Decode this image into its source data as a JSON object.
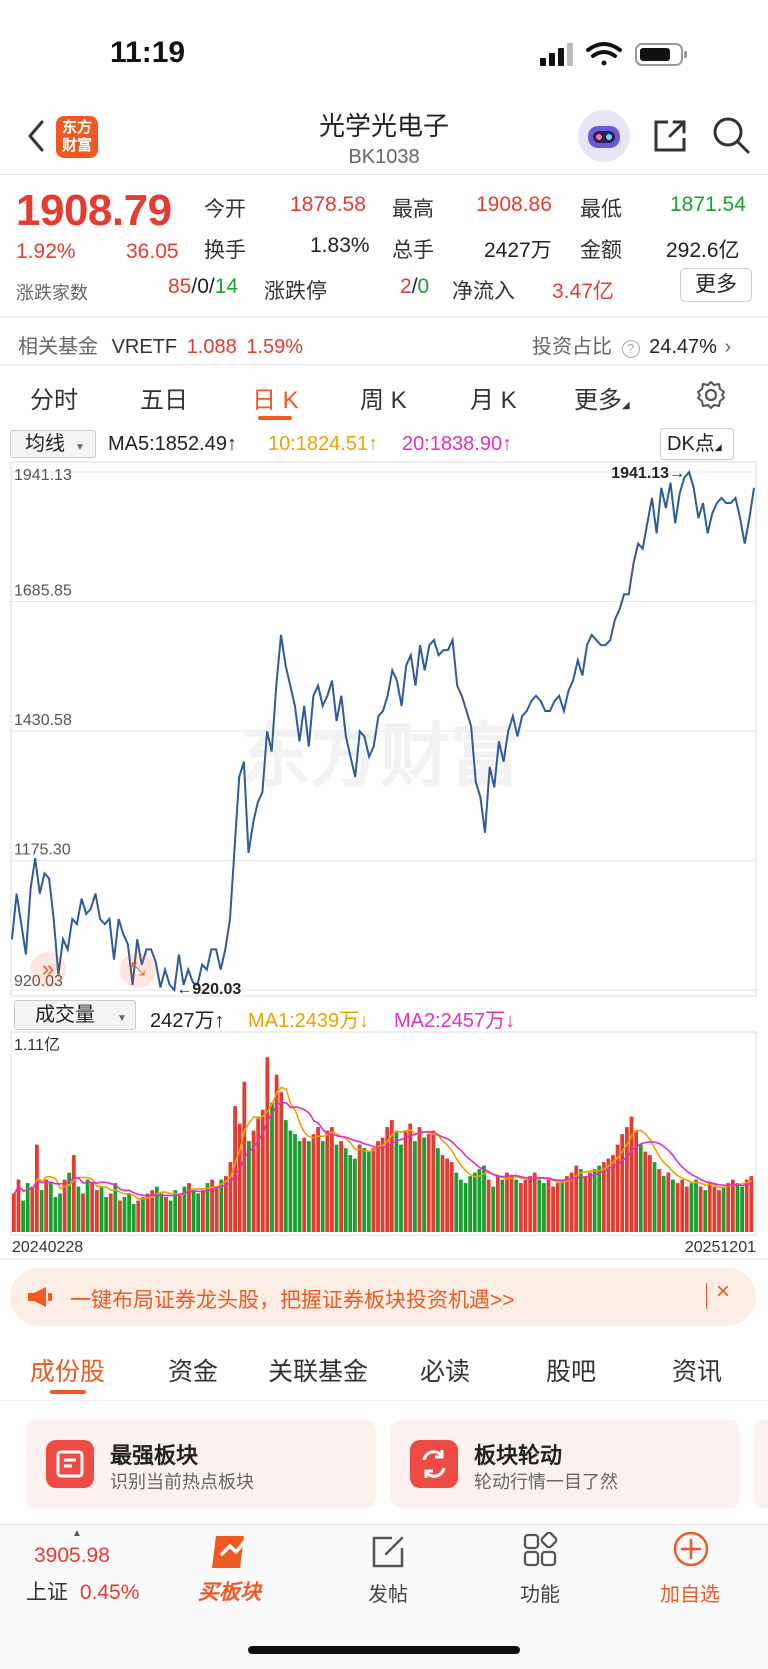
{
  "status_bar": {
    "time": "11:19"
  },
  "header": {
    "logo_line1": "东方",
    "logo_line2": "财富",
    "title": "光学光电子",
    "code": "BK1038"
  },
  "quote": {
    "price": "1908.79",
    "change_pct": "1.92%",
    "change": "36.05",
    "open_label": "今开",
    "open": "1878.58",
    "high_label": "最高",
    "high": "1908.86",
    "low_label": "最低",
    "low": "1871.54",
    "turnover_label": "换手",
    "turnover": "1.83%",
    "volume_label": "总手",
    "volume": "2427万",
    "amount_label": "金额",
    "amount": "292.6亿",
    "breadth_label": "涨跌家数",
    "breadth_up": "85",
    "breadth_sep1": "/",
    "breadth_flat": "0",
    "breadth_sep2": "/",
    "breadth_down": "14",
    "limit_label": "涨跌停",
    "limit_up": "2",
    "limit_sep": "/",
    "limit_down": "0",
    "netflow_label": "净流入",
    "netflow": "3.47亿",
    "more_label": "更多"
  },
  "fund": {
    "label": "相关基金",
    "name": "VRETF",
    "price": "1.088",
    "pct": "1.59%",
    "ratio_label": "投资占比",
    "ratio": "24.47%"
  },
  "chart_tabs": [
    "分时",
    "五日",
    "日 K",
    "周 K",
    "月 K",
    "更多"
  ],
  "chart_header": {
    "indicator_select": "均线",
    "ma5": "MA5:1852.49↑",
    "ma10": "10:1824.51↑",
    "ma20": "20:1838.90↑",
    "dk_label": "DK点"
  },
  "volume_header": {
    "select": "成交量",
    "volume": "2427万↑",
    "ma1": "MA1:2439万↓",
    "ma2": "MA2:2457万↓",
    "max_label": "1.11亿"
  },
  "colors": {
    "up": "#e53b30",
    "down": "#18a12f",
    "line": "#2f5a9b",
    "accent": "#f05a22",
    "ma10": "#f0a000",
    "ma20": "#e22ec4"
  },
  "chart_data": {
    "type": "line",
    "x_start": "20240228",
    "x_end": "20251201",
    "y_ticks": [
      "1941.13",
      "1685.85",
      "1430.58",
      "1175.30",
      "920.03"
    ],
    "ylim": [
      920.03,
      1941.13
    ],
    "max_label": "1941.13→",
    "min_label": "←920.03",
    "values": [
      1020,
      1110,
      1050,
      990,
      1120,
      1180,
      1110,
      1150,
      1140,
      1060,
      950,
      1020,
      1000,
      1060,
      1050,
      1100,
      1070,
      1080,
      1110,
      1060,
      1050,
      1060,
      980,
      1060,
      1030,
      1010,
      930,
      1020,
      970,
      1000,
      1000,
      975,
      925,
      960,
      930,
      920,
      990,
      930,
      960,
      935,
      930,
      970,
      960,
      1000,
      1000,
      960,
      1000,
      1060,
      1200,
      1340,
      1370,
      1190,
      1250,
      1290,
      1310,
      1430,
      1390,
      1520,
      1620,
      1560,
      1520,
      1480,
      1410,
      1480,
      1400,
      1500,
      1520,
      1480,
      1500,
      1530,
      1450,
      1500,
      1420,
      1380,
      1340,
      1430,
      1420,
      1380,
      1400,
      1460,
      1470,
      1500,
      1550,
      1530,
      1480,
      1560,
      1580,
      1520,
      1600,
      1550,
      1600,
      1610,
      1580,
      1590,
      1590,
      1610,
      1520,
      1500,
      1470,
      1440,
      1330,
      1300,
      1230,
      1360,
      1320,
      1410,
      1370,
      1430,
      1460,
      1420,
      1460,
      1470,
      1490,
      1500,
      1490,
      1470,
      1470,
      1490,
      1500,
      1470,
      1510,
      1530,
      1570,
      1540,
      1600,
      1620,
      1610,
      1600,
      1600,
      1610,
      1650,
      1670,
      1700,
      1700,
      1760,
      1800,
      1790,
      1840,
      1890,
      1820,
      1910,
      1870,
      1920,
      1840,
      1900,
      1930,
      1941,
      1910,
      1850,
      1880,
      1820,
      1860,
      1880,
      1890,
      1880,
      1880,
      1890,
      1850,
      1800,
      1850,
      1910
    ],
    "volume": [
      22,
      30,
      18,
      28,
      26,
      50,
      24,
      30,
      28,
      20,
      22,
      30,
      34,
      44,
      26,
      22,
      30,
      28,
      24,
      26,
      20,
      22,
      28,
      18,
      20,
      22,
      16,
      18,
      20,
      22,
      24,
      26,
      22,
      20,
      18,
      24,
      22,
      26,
      28,
      24,
      22,
      24,
      28,
      30,
      26,
      30,
      32,
      40,
      72,
      62,
      86,
      52,
      58,
      66,
      70,
      100,
      74,
      90,
      80,
      64,
      58,
      56,
      52,
      54,
      52,
      56,
      60,
      52,
      58,
      60,
      50,
      52,
      48,
      44,
      42,
      50,
      48,
      46,
      48,
      52,
      54,
      60,
      64,
      58,
      50,
      58,
      62,
      52,
      60,
      54,
      56,
      58,
      48,
      44,
      42,
      40,
      34,
      30,
      28,
      32,
      34,
      36,
      38,
      30,
      26,
      32,
      30,
      34,
      32,
      30,
      28,
      30,
      32,
      34,
      30,
      28,
      30,
      26,
      28,
      30,
      32,
      34,
      38,
      36,
      32,
      34,
      36,
      38,
      40,
      42,
      44,
      50,
      56,
      60,
      66,
      58,
      50,
      46,
      44,
      40,
      36,
      32,
      34,
      30,
      28,
      30,
      26,
      28,
      30,
      26,
      24,
      28,
      26,
      24,
      26,
      28,
      30,
      28,
      26,
      30,
      32
    ],
    "vmax": 111
  },
  "banner": {
    "text": "一键布局证券龙头股，把握证券板块投资机遇>>"
  },
  "bottom_tabs": [
    "成份股",
    "资金",
    "关联基金",
    "必读",
    "股吧",
    "资讯"
  ],
  "cards": [
    {
      "title": "最强板块",
      "subtitle": "识别当前热点板块"
    },
    {
      "title": "板块轮动",
      "subtitle": "轮动行情一目了然"
    }
  ],
  "bottom_nav": {
    "index_value": "3905.98",
    "index_name": "上证",
    "index_pct": "0.45%",
    "buy_label": "买板块",
    "post_label": "发帖",
    "func_label": "功能",
    "add_label": "加自选"
  }
}
